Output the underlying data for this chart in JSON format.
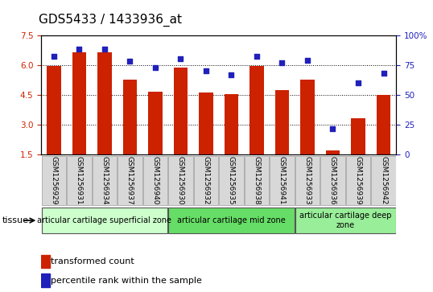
{
  "title": "GDS5433 / 1433936_at",
  "samples": [
    "GSM1256929",
    "GSM1256931",
    "GSM1256934",
    "GSM1256937",
    "GSM1256940",
    "GSM1256930",
    "GSM1256932",
    "GSM1256935",
    "GSM1256938",
    "GSM1256941",
    "GSM1256933",
    "GSM1256936",
    "GSM1256939",
    "GSM1256942"
  ],
  "bar_values": [
    5.95,
    6.65,
    6.65,
    5.25,
    4.65,
    5.85,
    4.6,
    4.55,
    5.95,
    4.75,
    5.25,
    1.7,
    3.35,
    4.5
  ],
  "dot_values": [
    82,
    88,
    88,
    78,
    73,
    80,
    70,
    67,
    82,
    77,
    79,
    22,
    60,
    68
  ],
  "ylim_left": [
    1.5,
    7.5
  ],
  "ylim_right": [
    0,
    100
  ],
  "yticks_left": [
    1.5,
    3.0,
    4.5,
    6.0,
    7.5
  ],
  "yticks_right": [
    0,
    25,
    50,
    75,
    100
  ],
  "bar_color": "#cc2200",
  "dot_color": "#2020bb",
  "bar_bottom": 1.5,
  "groups": [
    {
      "label": "articular cartilage superficial zone",
      "start": 0,
      "end": 5,
      "color": "#ccffcc"
    },
    {
      "label": "articular cartilage mid zone",
      "start": 5,
      "end": 10,
      "color": "#66dd66"
    },
    {
      "label": "articular cartilage deep\nzone",
      "start": 10,
      "end": 14,
      "color": "#99ee99"
    }
  ],
  "tissue_label": "tissue",
  "legend_bar_label": "transformed count",
  "legend_dot_label": "percentile rank within the sample",
  "bg_color": "#ffffff",
  "plot_bg": "#ffffff",
  "tick_color_left": "#cc2200",
  "tick_color_right": "#2020bb",
  "title_fontsize": 11,
  "axis_fontsize": 7,
  "tick_fontsize": 7.5,
  "label_fontsize": 7,
  "right_ylabel": "100%"
}
